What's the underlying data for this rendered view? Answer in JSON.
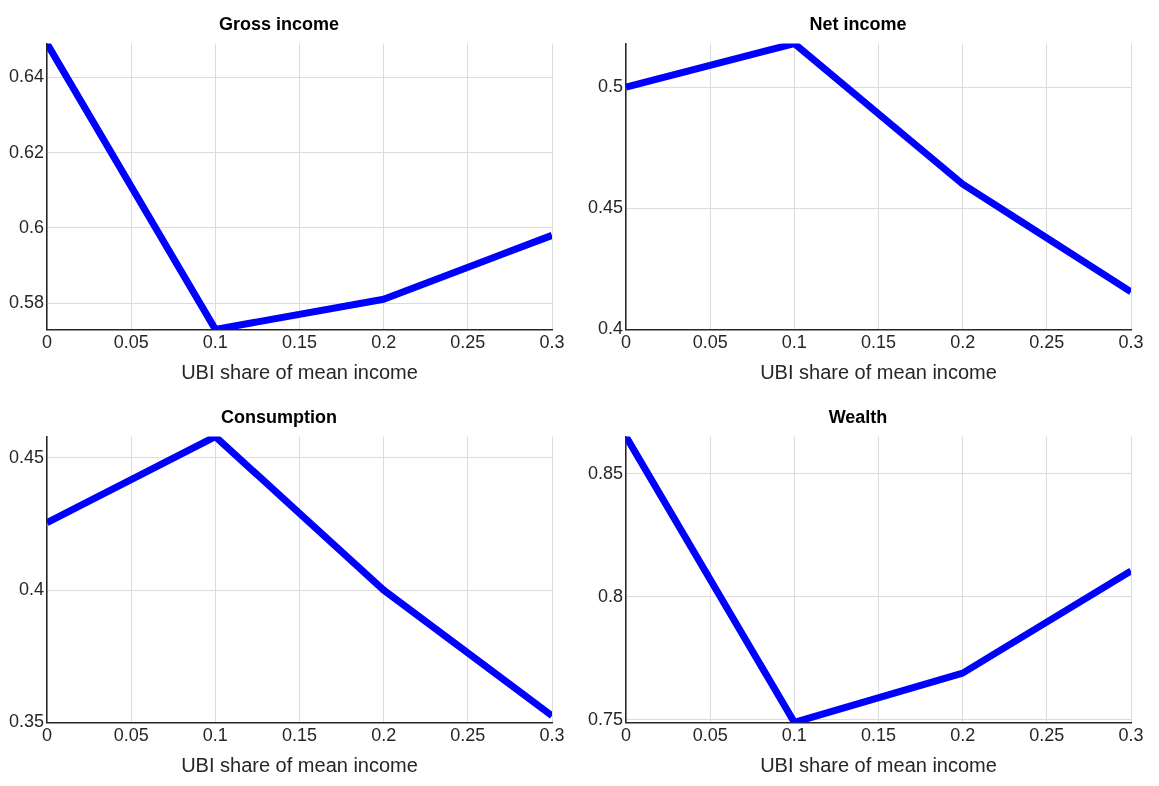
{
  "chart_data": [
    {
      "type": "line",
      "title": "Gross income",
      "xlabel": "UBI share of mean income",
      "x": [
        0,
        0.1,
        0.2,
        0.3
      ],
      "values": [
        0.649,
        0.573,
        0.581,
        0.598
      ],
      "color": "#0000ff",
      "xlim": [
        0,
        0.3
      ],
      "xticks": [
        0,
        0.05,
        0.1,
        0.15,
        0.2,
        0.25,
        0.3
      ],
      "ylim": [
        0.573,
        0.649
      ],
      "yticks": [
        0.58,
        0.6,
        0.62,
        0.64
      ],
      "grid": true
    },
    {
      "type": "line",
      "title": "Net income",
      "xlabel": "UBI share of mean income",
      "x": [
        0,
        0.1,
        0.2,
        0.3
      ],
      "values": [
        0.5,
        0.518,
        0.46,
        0.4155
      ],
      "color": "#0000ff",
      "xlim": [
        0,
        0.3
      ],
      "xticks": [
        0,
        0.05,
        0.1,
        0.15,
        0.2,
        0.25,
        0.3
      ],
      "ylim": [
        0.4,
        0.518
      ],
      "yticks": [
        0.4,
        0.45,
        0.5
      ],
      "grid": true
    },
    {
      "type": "line",
      "title": "Consumption",
      "xlabel": "UBI share of mean income",
      "x": [
        0,
        0.1,
        0.2,
        0.3
      ],
      "values": [
        0.4255,
        0.458,
        0.4,
        0.3525
      ],
      "color": "#0000ff",
      "xlim": [
        0,
        0.3
      ],
      "xticks": [
        0,
        0.05,
        0.1,
        0.15,
        0.2,
        0.25,
        0.3
      ],
      "ylim": [
        0.35,
        0.458
      ],
      "yticks": [
        0.35,
        0.4,
        0.45
      ],
      "grid": true
    },
    {
      "type": "line",
      "title": "Wealth",
      "xlabel": "UBI share of mean income",
      "x": [
        0,
        0.1,
        0.2,
        0.3
      ],
      "values": [
        0.865,
        0.749,
        0.769,
        0.8105
      ],
      "color": "#0000ff",
      "xlim": [
        0,
        0.3
      ],
      "xticks": [
        0,
        0.05,
        0.1,
        0.15,
        0.2,
        0.25,
        0.3
      ],
      "ylim": [
        0.749,
        0.865
      ],
      "yticks": [
        0.75,
        0.8,
        0.85
      ],
      "grid": true
    }
  ]
}
